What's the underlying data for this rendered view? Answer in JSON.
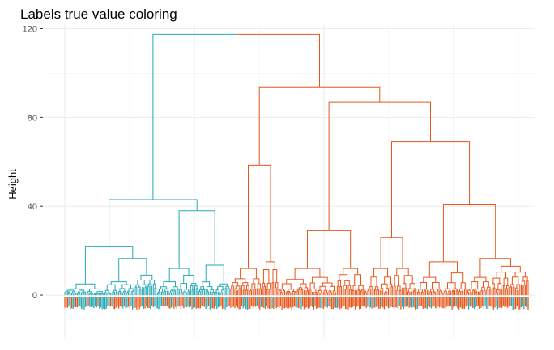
{
  "chart_data": {
    "type": "dendrogram",
    "title": "Labels true value coloring",
    "xlabel": "",
    "ylabel": "Height",
    "ylim": [
      -20,
      122
    ],
    "yticks": [
      0,
      40,
      80,
      120
    ],
    "grid": true,
    "legend": "none",
    "leaf_count": 336,
    "root_height": 117.5,
    "colors": {
      "cluster_1": "#26A9B4",
      "cluster_2": "#E8561C",
      "grid": "#ebebeb",
      "axis_text": "#4d4d4d"
    },
    "clusters": [
      {
        "name": "",
        "color": "#26A9B4",
        "leaf_range": [
          0,
          119
        ],
        "merge_height": 43
      },
      {
        "name": "",
        "color": "#E8561C",
        "leaf_range": [
          120,
          335
        ],
        "merge_height": 93.5
      }
    ],
    "merges": [
      {
        "height": 117.5
      },
      {
        "height": 93.5
      },
      {
        "height": 87
      },
      {
        "height": 69
      },
      {
        "height": 58.5
      },
      {
        "height": 43
      },
      {
        "height": 41
      },
      {
        "height": 38
      },
      {
        "height": 29
      },
      {
        "height": 26
      },
      {
        "height": 22
      }
    ]
  }
}
